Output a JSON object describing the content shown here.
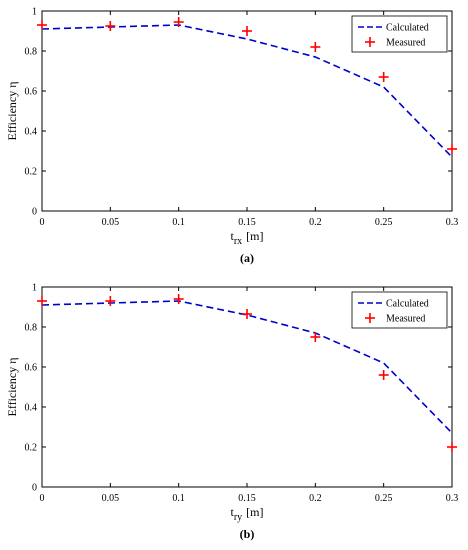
{
  "chart_data": [
    {
      "type": "line",
      "panel_label": "(a)",
      "xlabel": {
        "main": "t",
        "sub": "rx",
        "unit": "[m]"
      },
      "ylabel": "Efficiency η",
      "xlim": [
        0,
        0.3
      ],
      "ylim": [
        0,
        1
      ],
      "xticks": [
        "0",
        "0.05",
        "0.1",
        "0.15",
        "0.2",
        "0.25",
        "0.3"
      ],
      "yticks": [
        "0",
        "0.2",
        "0.4",
        "0.6",
        "0.8",
        "1"
      ],
      "grid": false,
      "legend_position": "top-right",
      "series": [
        {
          "name": "Calculated",
          "style": "dashed-line",
          "color": "#0000cc",
          "x": [
            0,
            0.05,
            0.1,
            0.15,
            0.2,
            0.25,
            0.3
          ],
          "y": [
            0.91,
            0.92,
            0.93,
            0.86,
            0.77,
            0.62,
            0.27
          ]
        },
        {
          "name": "Measured",
          "style": "plus-marker",
          "color": "#ff0000",
          "x": [
            0,
            0.05,
            0.1,
            0.15,
            0.2,
            0.25,
            0.3
          ],
          "y": [
            0.93,
            0.925,
            0.945,
            0.9,
            0.82,
            0.67,
            0.31
          ]
        }
      ]
    },
    {
      "type": "line",
      "panel_label": "(b)",
      "xlabel": {
        "main": "t",
        "sub": "ry",
        "unit": "[m]"
      },
      "ylabel": "Efficiency η",
      "xlim": [
        0,
        0.3
      ],
      "ylim": [
        0,
        1
      ],
      "xticks": [
        "0",
        "0.05",
        "0.1",
        "0.15",
        "0.2",
        "0.25",
        "0.3"
      ],
      "yticks": [
        "0",
        "0.2",
        "0.4",
        "0.6",
        "0.8",
        "1"
      ],
      "grid": false,
      "legend_position": "top-right",
      "series": [
        {
          "name": "Calculated",
          "style": "dashed-line",
          "color": "#0000cc",
          "x": [
            0,
            0.05,
            0.1,
            0.15,
            0.2,
            0.25,
            0.3
          ],
          "y": [
            0.91,
            0.92,
            0.93,
            0.86,
            0.77,
            0.62,
            0.27
          ]
        },
        {
          "name": "Measured",
          "style": "plus-marker",
          "color": "#ff0000",
          "x": [
            0,
            0.05,
            0.1,
            0.15,
            0.2,
            0.25,
            0.3
          ],
          "y": [
            0.93,
            0.93,
            0.94,
            0.865,
            0.75,
            0.56,
            0.2
          ]
        }
      ]
    }
  ]
}
